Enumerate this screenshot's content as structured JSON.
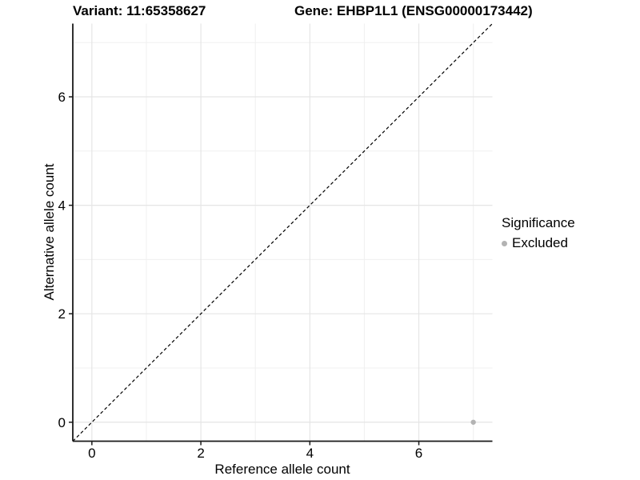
{
  "header": {
    "left_title": "Variant: 11:65358627",
    "right_title": "Gene: EHBP1L1 (ENSG00000173442)"
  },
  "legend": {
    "title": "Significance",
    "items": [
      {
        "label": "Excluded",
        "color": "#b3b3b3",
        "marker": "circle-icon"
      }
    ]
  },
  "chart_data": {
    "type": "scatter",
    "xlabel": "Reference allele count",
    "ylabel": "Alternative allele count",
    "xlim": [
      -0.35,
      7.35
    ],
    "ylim": [
      -0.35,
      7.35
    ],
    "x_ticks": [
      0,
      2,
      4,
      6
    ],
    "y_ticks": [
      0,
      2,
      4,
      6
    ],
    "x_minor_gridlines": [
      1,
      3,
      5,
      7
    ],
    "y_minor_gridlines": [
      1,
      3,
      5,
      7
    ],
    "grid": "major+minor",
    "legend_position": "right",
    "reference_line": {
      "type": "identity",
      "from": [
        -0.35,
        -0.35
      ],
      "to": [
        7.35,
        7.35
      ],
      "style": "dashed",
      "color": "#000000"
    },
    "series": [
      {
        "name": "Excluded",
        "color": "#b3b3b3",
        "points": [
          {
            "x": 7,
            "y": 0
          }
        ]
      }
    ],
    "colors": {
      "major_grid": "#e5e5e5",
      "minor_grid": "#f0f0f0",
      "axis_line": "#1a1a1a",
      "tick_mark": "#1a1a1a",
      "tick_label": "#000000"
    }
  }
}
